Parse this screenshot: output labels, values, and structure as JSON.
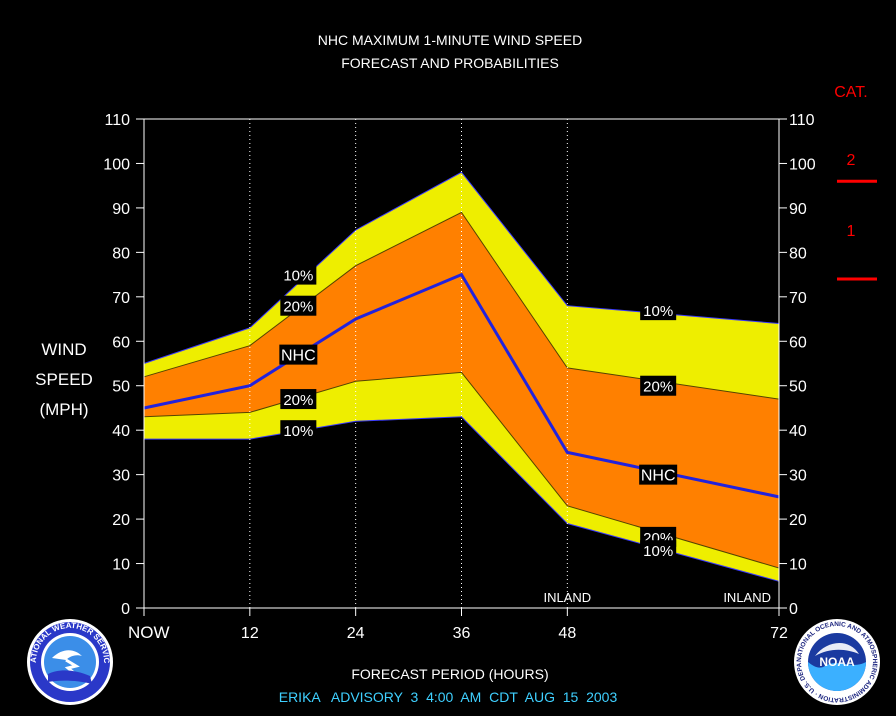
{
  "title_line1": "NHC MAXIMUM 1-MINUTE WIND SPEED",
  "title_line2": "FORECAST AND PROBABILITIES",
  "ylabel": [
    "WIND",
    "SPEED",
    "(MPH)"
  ],
  "xlabel": "FORECAST PERIOD (HOURS)",
  "advisory": "ERIKA   ADVISORY  3  4:00  AM  CDT  AUG  15  2003",
  "category": {
    "title": "CAT.",
    "labels": [
      {
        "text": "2",
        "at": 101
      },
      {
        "text": "1",
        "at": 85
      }
    ],
    "thresholds": [
      96,
      74
    ],
    "color": "#ff0000"
  },
  "colors": {
    "outer_band": "#eeee00",
    "inner_band": "#ff8000",
    "nhc_line": "#2222dd",
    "grid": "#ffffff"
  },
  "logos": {
    "left": "nws-logo",
    "left_text": "NATIONAL WEATHER SERVICE",
    "right": "noaa-logo",
    "right_text": "NOAA",
    "right_ring_text": "NATIONAL OCEANIC AND ATMOSPHERIC ADMINISTRATION · U.S. DEPARTMENT OF COMMERCE"
  },
  "chart_data": {
    "type": "area",
    "ylim": [
      0,
      110
    ],
    "xlim": [
      0,
      72
    ],
    "yticks": [
      0,
      10,
      20,
      30,
      40,
      50,
      60,
      70,
      80,
      90,
      100,
      110
    ],
    "xticks": [
      {
        "x": 0,
        "label": "NOW"
      },
      {
        "x": 12,
        "label": "12"
      },
      {
        "x": 24,
        "label": "24"
      },
      {
        "x": 36,
        "label": "36"
      },
      {
        "x": 48,
        "label": "48"
      },
      {
        "x": 72,
        "label": "72"
      }
    ],
    "x": [
      0,
      12,
      24,
      36,
      48,
      72
    ],
    "series": [
      {
        "name": "10%",
        "role": "upper-outer",
        "values": [
          55,
          63,
          85,
          98,
          68,
          64
        ]
      },
      {
        "name": "20%",
        "role": "upper-inner",
        "values": [
          52,
          59,
          77,
          89,
          54,
          47
        ]
      },
      {
        "name": "NHC",
        "role": "forecast",
        "values": [
          45,
          50,
          65,
          75,
          35,
          25
        ]
      },
      {
        "name": "20%",
        "role": "lower-inner",
        "values": [
          43,
          44,
          51,
          53,
          23,
          9
        ]
      },
      {
        "name": "10%",
        "role": "lower-outer",
        "values": [
          38,
          38,
          42,
          43,
          19,
          6
        ]
      }
    ],
    "series_labels": [
      {
        "text": "10%",
        "x": 17.5,
        "y": 75
      },
      {
        "text": "20%",
        "x": 17.5,
        "y": 68
      },
      {
        "text": "NHC",
        "x": 17.5,
        "y": 57
      },
      {
        "text": "20%",
        "x": 17.5,
        "y": 47
      },
      {
        "text": "10%",
        "x": 17.5,
        "y": 40
      },
      {
        "text": "10%",
        "x": 58.3,
        "y": 67
      },
      {
        "text": "20%",
        "x": 58.3,
        "y": 50
      },
      {
        "text": "NHC",
        "x": 58.3,
        "y": 30
      },
      {
        "text": "20%",
        "x": 58.3,
        "y": 16
      },
      {
        "text": "10%",
        "x": 58.3,
        "y": 13
      }
    ],
    "annotations": [
      {
        "text": "INLAND",
        "x": 48
      },
      {
        "text": "INLAND",
        "x": 72
      }
    ],
    "grid": true
  }
}
